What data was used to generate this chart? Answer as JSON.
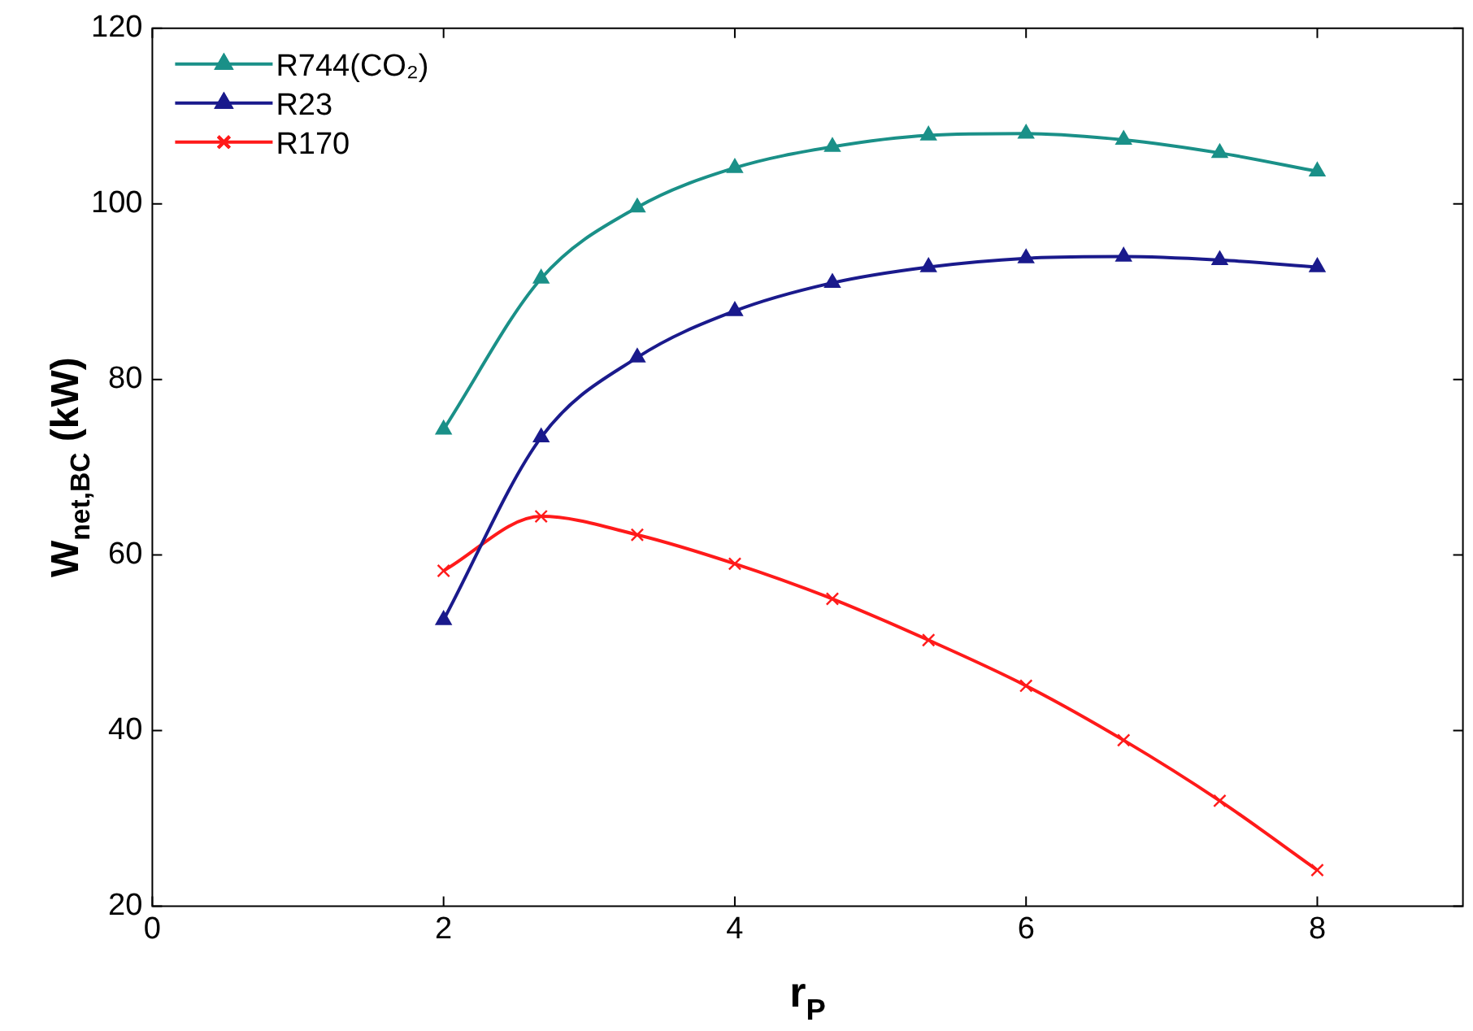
{
  "chart_data": {
    "type": "line",
    "xlabel": "r$_{P}$",
    "ylabel": "W$_{net,BC}$ (kW)",
    "xlim": [
      0,
      9
    ],
    "xticks": [
      0,
      2,
      4,
      6,
      8
    ],
    "ylim": [
      20,
      120
    ],
    "yticks": [
      20,
      40,
      60,
      80,
      100,
      120
    ],
    "grid": false,
    "legend": "top left",
    "line_style": "solid",
    "x": [
      2,
      2.67,
      3.33,
      4,
      4.67,
      5.33,
      6,
      6.67,
      7.33,
      8
    ],
    "series": [
      {
        "name": "R744(CO₂)",
        "color": "#1a9088",
        "marker": "triangle",
        "values": [
          74.3,
          91.5,
          99.6,
          104.1,
          106.5,
          107.8,
          108,
          107.3,
          105.8,
          103.7
        ]
      },
      {
        "name": "R23",
        "color": "#1a1a8c",
        "marker": "triangle",
        "values": [
          52.6,
          73.4,
          82.5,
          87.8,
          91,
          92.8,
          93.8,
          94,
          93.6,
          92.8
        ]
      },
      {
        "name": "R170",
        "color": "#ff1a1a",
        "marker": "cross",
        "values": [
          58.2,
          64.4,
          62.3,
          59,
          55,
          50.3,
          45.1,
          38.9,
          32,
          24.1
        ]
      }
    ]
  }
}
